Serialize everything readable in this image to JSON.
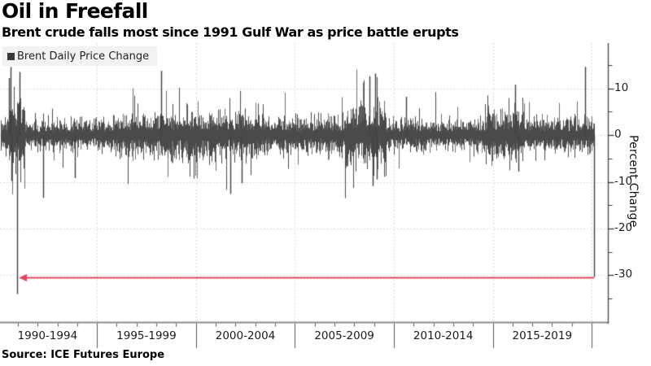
{
  "chart_data": {
    "type": "bar",
    "title": "Oil in Freefall",
    "subtitle": "Brent crude falls most since 1991 Gulf War as price battle erupts",
    "legend_label": "Brent Daily Price Change",
    "ylabel": "Percent Change",
    "source": "Source: ICE Futures Europe",
    "x_period_labels": [
      "1990-1994",
      "1995-1999",
      "2000-2004",
      "2005-2009",
      "2010-2014",
      "2015-2019"
    ],
    "x_range": [
      1990.1,
      2020.86
    ],
    "grid_x_years": [
      1995,
      2000,
      2005,
      2010,
      2015,
      2020
    ],
    "y_ticks_major": [
      10,
      0,
      -10,
      -20,
      -30
    ],
    "y_ticks_minor": [
      15,
      5,
      -5,
      -15,
      -25,
      -35
    ],
    "ylim": [
      -40.1,
      19.7
    ],
    "grid": true,
    "legend_position": "top-left-inside",
    "bar_color": "#4a4a4a",
    "bar_color_light": "#6f6f6f",
    "axis_color_x": "#8c8c8c",
    "axis_color_y": "#4f4f4f",
    "tick_color": "#3a3a3a",
    "grid_color": "#cfcfcf",
    "arrow": {
      "value": -30.4,
      "from_year": 2020.13,
      "to_year": 1990.97,
      "color": "#e0485f"
    },
    "series_model": {
      "seed": 1337,
      "volatility_eras": [
        {
          "from": 1990.1,
          "to": 1990.52,
          "sigma": 1.9
        },
        {
          "from": 1990.52,
          "to": 1991.35,
          "sigma": 4.2
        },
        {
          "from": 1991.35,
          "to": 1996.0,
          "sigma": 1.6
        },
        {
          "from": 1996.0,
          "to": 1999.5,
          "sigma": 2.3
        },
        {
          "from": 1999.5,
          "to": 2003.3,
          "sigma": 2.4
        },
        {
          "from": 2003.3,
          "to": 2007.5,
          "sigma": 1.9
        },
        {
          "from": 2007.5,
          "to": 2009.6,
          "sigma": 3.4
        },
        {
          "from": 2009.6,
          "to": 2014.6,
          "sigma": 1.6
        },
        {
          "from": 2014.6,
          "to": 2016.6,
          "sigma": 2.6
        },
        {
          "from": 2016.6,
          "to": 2019.5,
          "sigma": 1.8
        },
        {
          "from": 2019.5,
          "to": 2020.14,
          "sigma": 2.1
        }
      ],
      "key_events": [
        {
          "year": 1990.55,
          "value": 12.2
        },
        {
          "year": 1990.62,
          "value": 14.6
        },
        {
          "year": 1990.68,
          "value": -9.8
        },
        {
          "year": 1990.97,
          "value": -34.0
        },
        {
          "year": 1991.08,
          "value": 13.5
        },
        {
          "year": 1992.3,
          "value": -13.4
        },
        {
          "year": 1993.9,
          "value": -9.2
        },
        {
          "year": 1998.26,
          "value": 13.8
        },
        {
          "year": 2001.73,
          "value": -12.6
        },
        {
          "year": 2002.3,
          "value": -10.3
        },
        {
          "year": 2008.78,
          "value": 12.6
        },
        {
          "year": 2008.95,
          "value": -10.9
        },
        {
          "year": 2009.05,
          "value": 13.2
        },
        {
          "year": 2009.15,
          "value": -9.5
        },
        {
          "year": 2010.6,
          "value": 8.2
        },
        {
          "year": 2016.12,
          "value": 10.8
        },
        {
          "year": 2016.3,
          "value": -7.8
        },
        {
          "year": 2019.65,
          "value": 14.6
        },
        {
          "year": 2020.13,
          "value": -30.4
        }
      ]
    }
  }
}
